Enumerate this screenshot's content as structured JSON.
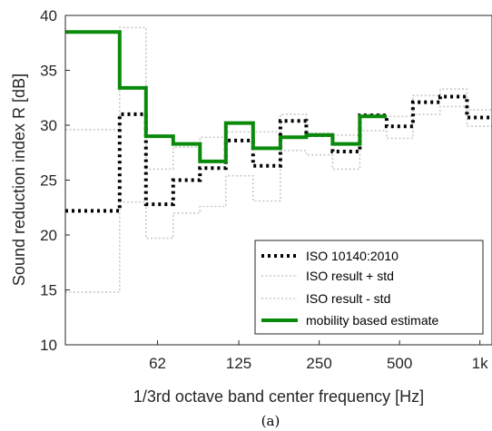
{
  "chart_data": {
    "type": "line",
    "step": true,
    "caption": "(a)",
    "xlabel": "1/3rd octave band center frequency [Hz]",
    "ylabel": "Sound reduction index R [dB]",
    "x_scale": "log",
    "xlim": [
      28,
      1110
    ],
    "ylim": [
      10,
      40
    ],
    "x_ticks": [
      {
        "value": 62,
        "label": "62"
      },
      {
        "value": 125,
        "label": "125"
      },
      {
        "value": 250,
        "label": "250"
      },
      {
        "value": 500,
        "label": "500"
      },
      {
        "value": 1000,
        "label": "1k"
      }
    ],
    "y_ticks": [
      10,
      15,
      20,
      25,
      30,
      35,
      40
    ],
    "grid": false,
    "legend_position": "bottom-right",
    "x_bands": [
      31.5,
      40,
      50,
      63,
      80,
      100,
      125,
      160,
      200,
      250,
      315,
      400,
      500,
      630,
      800,
      1000
    ],
    "series": [
      {
        "name": "ISO 10140:2010",
        "color": "#000000",
        "style": "dotted",
        "values": [
          22.2,
          22.2,
          31.0,
          22.8,
          25.0,
          26.1,
          28.6,
          26.3,
          30.4,
          29.1,
          27.6,
          30.9,
          29.9,
          32.1,
          32.6,
          30.7
        ]
      },
      {
        "name": "ISO result + std",
        "color": "#c8c8c8",
        "style": "dotted",
        "values": [
          29.6,
          29.6,
          38.9,
          26.0,
          28.0,
          28.9,
          29.4,
          29.4,
          31.0,
          29.3,
          29.1,
          31.0,
          30.8,
          32.7,
          33.3,
          31.4
        ]
      },
      {
        "name": "ISO result - std",
        "color": "#c8c8c8",
        "style": "dotted",
        "values": [
          14.8,
          14.8,
          23.0,
          19.7,
          22.0,
          22.6,
          25.4,
          23.1,
          27.7,
          27.3,
          26.0,
          29.5,
          28.8,
          31.0,
          31.7,
          29.9
        ]
      },
      {
        "name": "mobility based estimate",
        "color": "#0a8a0a",
        "style": "solid",
        "values": [
          38.5,
          38.5,
          33.4,
          29.0,
          28.3,
          26.7,
          30.2,
          27.9,
          28.9,
          29.1,
          28.3,
          30.8
        ]
      }
    ]
  }
}
